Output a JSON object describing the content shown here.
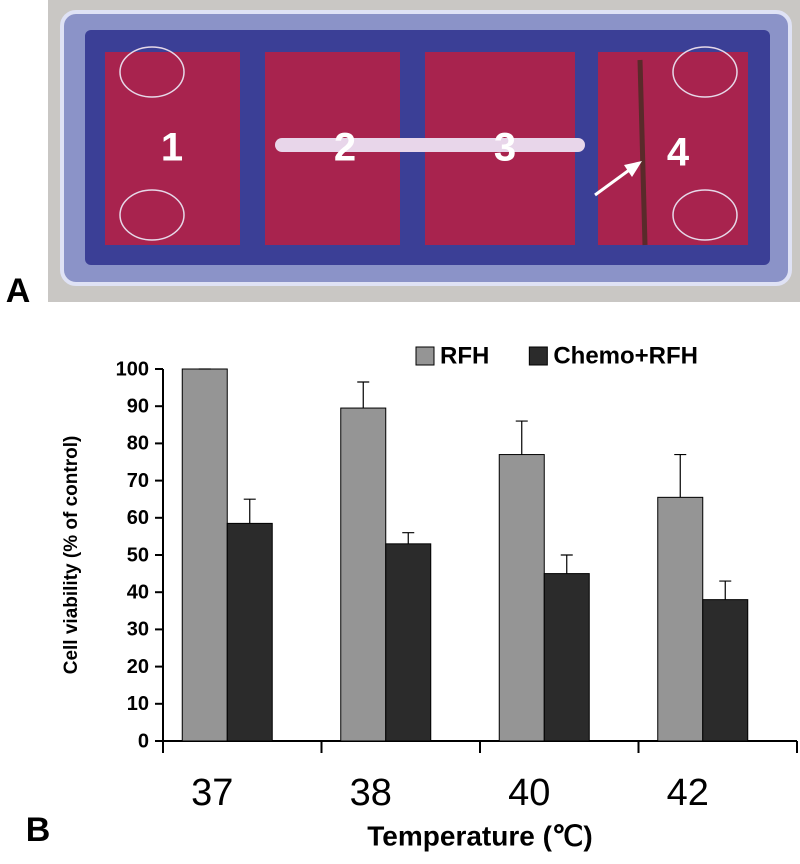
{
  "panel_a": {
    "label": "A",
    "wells": [
      "1",
      "2",
      "3",
      "4"
    ]
  },
  "chart_data": {
    "type": "bar",
    "panel_label": "B",
    "xlabel": "Temperature (℃)",
    "ylabel": "Cell viability (% of control)",
    "categories": [
      "37",
      "38",
      "40",
      "42"
    ],
    "series": [
      {
        "name": "RFH",
        "color": "#959595",
        "values": [
          100,
          89.5,
          77,
          65.5
        ],
        "errors": [
          0,
          7,
          9,
          11.5
        ]
      },
      {
        "name": "Chemo+RFH",
        "color": "#2b2b2b",
        "values": [
          58.5,
          53,
          45,
          38
        ],
        "errors": [
          6.5,
          3,
          5,
          5
        ]
      }
    ],
    "ylim": [
      0,
      100
    ],
    "yticks": [
      0,
      10,
      20,
      30,
      40,
      50,
      60,
      70,
      80,
      90,
      100
    ],
    "legend": "top-right"
  }
}
